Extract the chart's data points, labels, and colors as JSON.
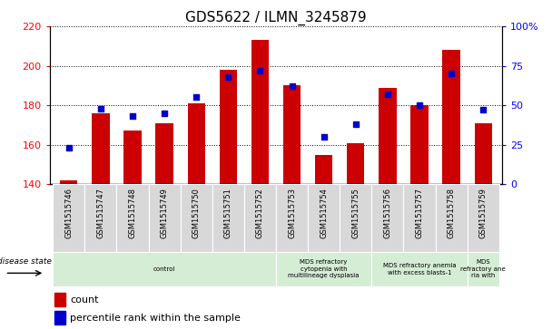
{
  "title": "GDS5622 / ILMN_3245879",
  "samples": [
    "GSM1515746",
    "GSM1515747",
    "GSM1515748",
    "GSM1515749",
    "GSM1515750",
    "GSM1515751",
    "GSM1515752",
    "GSM1515753",
    "GSM1515754",
    "GSM1515755",
    "GSM1515756",
    "GSM1515757",
    "GSM1515758",
    "GSM1515759"
  ],
  "counts": [
    142,
    176,
    167,
    171,
    181,
    198,
    213,
    190,
    155,
    161,
    189,
    180,
    208,
    171
  ],
  "percentiles": [
    23,
    48,
    43,
    45,
    55,
    68,
    72,
    62,
    30,
    38,
    57,
    50,
    70,
    47
  ],
  "ymin": 140,
  "ymax": 220,
  "y_left_ticks": [
    140,
    160,
    180,
    200,
    220
  ],
  "y_right_ticks": [
    0,
    25,
    50,
    75,
    100
  ],
  "bar_color": "#cc0000",
  "dot_color": "#0000cc",
  "background_color": "#ffffff",
  "ds_groups": [
    {
      "label": "control",
      "start": 0,
      "end": 7,
      "color": "#d5ecd5"
    },
    {
      "label": "MDS refractory\ncytopenia with\nmultilineage dysplasia",
      "start": 7,
      "end": 10,
      "color": "#d5ecd5"
    },
    {
      "label": "MDS refractory anemia\nwith excess blasts-1",
      "start": 10,
      "end": 13,
      "color": "#d5ecd5"
    },
    {
      "label": "MDS\nrefractory ane\nria with",
      "start": 13,
      "end": 14,
      "color": "#d5ecd5"
    }
  ],
  "legend_count_label": "count",
  "legend_percentile_label": "percentile rank within the sample",
  "disease_state_label": "disease state"
}
